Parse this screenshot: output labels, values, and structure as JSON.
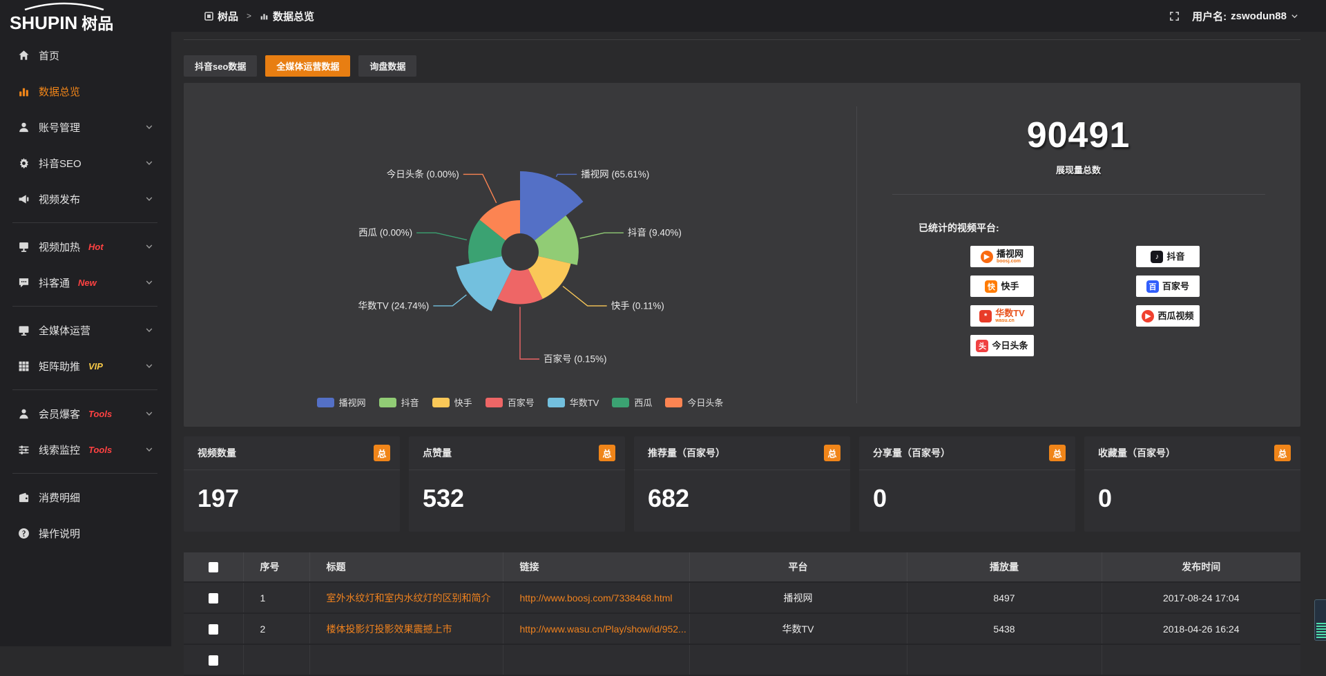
{
  "topbar": {
    "logo_en": "SHUPIN",
    "logo_cn": "树品",
    "breadcrumb": [
      {
        "label": "树品"
      },
      {
        "label": "数据总览"
      }
    ],
    "separator": ">",
    "user_prefix": "用户名:",
    "username": "zswodun88"
  },
  "sidebar": {
    "items": [
      {
        "key": "home",
        "label": "首页",
        "icon": "home"
      },
      {
        "key": "data-overview",
        "label": "数据总览",
        "icon": "chart-bars",
        "active": true
      },
      {
        "key": "account-management",
        "label": "账号管理",
        "icon": "user",
        "chevron": true
      },
      {
        "key": "douyin-seo",
        "label": "抖音SEO",
        "icon": "gear",
        "chevron": true
      },
      {
        "key": "video-publish",
        "label": "视频发布",
        "icon": "megaphone",
        "chevron": true,
        "divider_after": true
      },
      {
        "key": "video-heating",
        "label": "视频加热",
        "icon": "screen",
        "badge": "Hot",
        "badge_color": "#ff4242",
        "chevron": true
      },
      {
        "key": "douketong",
        "label": "抖客通",
        "icon": "chat",
        "badge": "New",
        "badge_color": "#ff4242",
        "chevron": true,
        "divider_after": true
      },
      {
        "key": "omni-media",
        "label": "全媒体运营",
        "icon": "monitor",
        "chevron": true
      },
      {
        "key": "matrix-boost",
        "label": "矩阵助推",
        "icon": "grid",
        "badge": "VIP",
        "badge_color": "#f7c948",
        "chevron": true,
        "divider_after": true
      },
      {
        "key": "member-baoke",
        "label": "会员爆客",
        "icon": "person",
        "badge": "Tools",
        "badge_color": "#ff4242",
        "chevron": true
      },
      {
        "key": "clue-monitor",
        "label": "线索监控",
        "icon": "sliders",
        "badge": "Tools",
        "badge_color": "#ff4242",
        "chevron": true,
        "divider_after": true
      },
      {
        "key": "consume-detail",
        "label": "消费明细",
        "icon": "wallet"
      },
      {
        "key": "operation-guide",
        "label": "操作说明",
        "icon": "help"
      }
    ]
  },
  "tabs": [
    {
      "key": "douyin-seo-data",
      "label": "抖音seo数据"
    },
    {
      "key": "omni-media-data",
      "label": "全媒体运营数据",
      "active": true
    },
    {
      "key": "inquiry-data",
      "label": "询盘数据"
    }
  ],
  "chart_data": {
    "type": "pie",
    "variant": "nightingale-rose",
    "donut": true,
    "equal_angle": true,
    "legend_position": "bottom",
    "label_format": "{name} ({value}%)",
    "labels": [
      "播视网",
      "抖音",
      "快手",
      "百家号",
      "华数TV",
      "西瓜",
      "今日头条"
    ],
    "values_percent": [
      65.61,
      9.4,
      0.11,
      0.15,
      24.74,
      0.0,
      0.0
    ],
    "colors": [
      "#5470c6",
      "#91cc75",
      "#fac858",
      "#ee6666",
      "#73c0de",
      "#3ba272",
      "#fc8452"
    ]
  },
  "summary": {
    "total_value": "90491",
    "total_label": "展现量总数",
    "platforms_title": "已统计的视频平台:",
    "platforms": [
      {
        "name": "播视网",
        "domain": "boosj.com",
        "color": "#f96a10",
        "glyph": "▶",
        "round": true
      },
      {
        "name": "抖音",
        "color": "#16161c",
        "glyph": "♪"
      },
      {
        "name": "快手",
        "color": "#ff7b00",
        "glyph": "快"
      },
      {
        "name": "百家号",
        "color": "#315efb",
        "glyph": "百"
      },
      {
        "name": "华数TV",
        "domain": "wasu.cn",
        "color": "#e83c28",
        "glyph": "*",
        "name_color": "#e8541e"
      },
      {
        "name": "西瓜视频",
        "color": "#f0402e",
        "glyph": "▶",
        "round": true
      },
      {
        "name": "今日头条",
        "color": "#f04142",
        "glyph": "头"
      }
    ]
  },
  "stats": [
    {
      "key": "video-count",
      "label": "视频数量",
      "value": "197",
      "badge": "总"
    },
    {
      "key": "like-count",
      "label": "点赞量",
      "value": "532",
      "badge": "总"
    },
    {
      "key": "recommend-count",
      "label": "推荐量（百家号）",
      "value": "682",
      "badge": "总"
    },
    {
      "key": "share-count",
      "label": "分享量（百家号）",
      "value": "0",
      "badge": "总"
    },
    {
      "key": "favorite-count",
      "label": "收藏量（百家号）",
      "value": "0",
      "badge": "总"
    }
  ],
  "table": {
    "headers": [
      "序号",
      "标题",
      "链接",
      "平台",
      "播放量",
      "发布时间"
    ],
    "rows": [
      {
        "seq": "1",
        "title": "室外水纹灯和室内水纹灯的区别和简介",
        "link": "http://www.boosj.com/7338468.html",
        "platform": "播视网",
        "plays": "8497",
        "time": "2017-08-24 17:04"
      },
      {
        "seq": "2",
        "title": "楼体投影灯投影效果震撼上市",
        "link": "http://www.wasu.cn/Play/show/id/952...",
        "platform": "华数TV",
        "plays": "5438",
        "time": "2018-04-26 16:24"
      },
      {
        "seq": "",
        "title": "",
        "link": "",
        "platform": "",
        "plays": "",
        "time": ""
      }
    ]
  },
  "accent_color": "#e87e12",
  "sidebar_active_color": "#f08519"
}
